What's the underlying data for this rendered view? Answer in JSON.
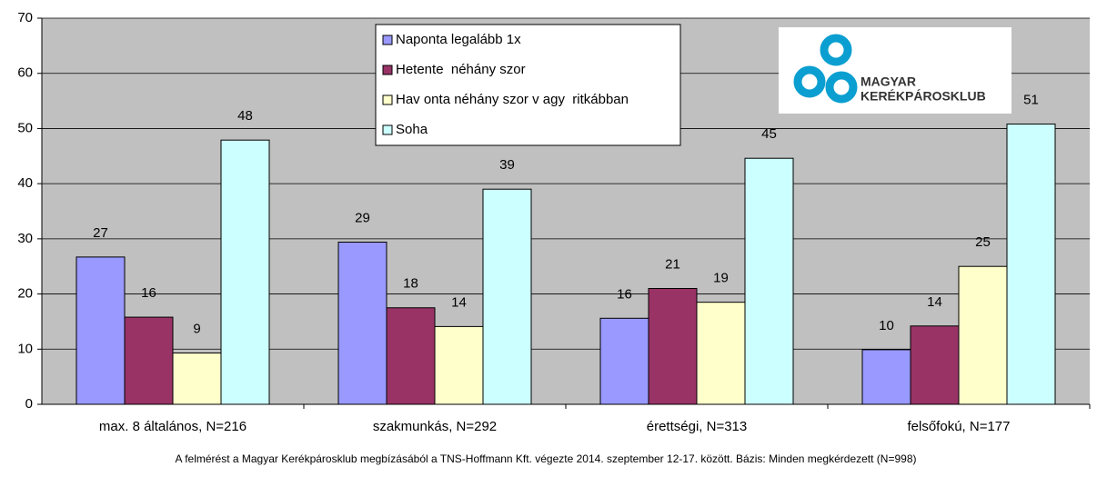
{
  "chart_data": {
    "type": "bar",
    "categories": [
      "max. 8 általános, N=216",
      "szakmunkás, N=292",
      "érettségi, N=313",
      "felsőfokú, N=177"
    ],
    "series": [
      {
        "name": "Naponta legalább 1x",
        "color": "#9999ff",
        "values": [
          26.7,
          29.4,
          15.6,
          9.9
        ],
        "value_labels": [
          "27",
          "29",
          "16",
          "10"
        ]
      },
      {
        "name": "Hetente  néhány szor",
        "color": "#993366",
        "values": [
          15.8,
          17.5,
          21.0,
          14.2
        ],
        "value_labels": [
          "16",
          "18",
          "21",
          "14"
        ]
      },
      {
        "name": "Hav onta néhány szor v agy  ritkábban",
        "color": "#ffffcc",
        "values": [
          9.3,
          14.1,
          18.5,
          25.0
        ],
        "value_labels": [
          "9",
          "14",
          "19",
          "25"
        ]
      },
      {
        "name": "Soha",
        "color": "#ccffff",
        "values": [
          47.9,
          39.0,
          44.6,
          50.8
        ],
        "value_labels": [
          "48",
          "39",
          "45",
          "51"
        ]
      }
    ],
    "ylim": [
      0,
      70
    ],
    "yticks": [
      0,
      10,
      20,
      30,
      40,
      50,
      60,
      70
    ],
    "grid": true,
    "legend": "top",
    "logo": [
      "MAGYAR",
      "KERÉKPÁROSKLUB"
    ],
    "note": "A felmérést a Magyar Kerékpárosklub megbízásából a TNS-Hoffmann Kft. végezte 2014. szeptember 12-17. között. Bázis: Minden megkérdezett (N=998)"
  }
}
